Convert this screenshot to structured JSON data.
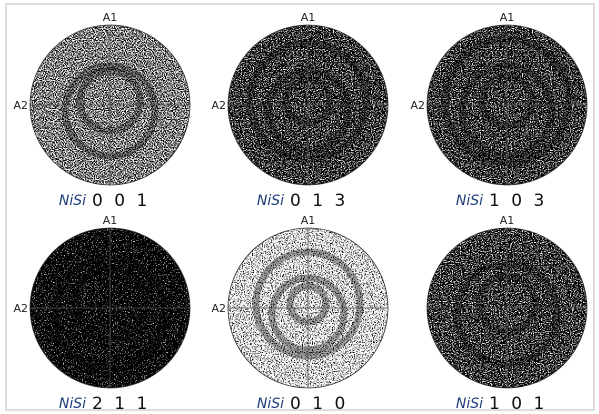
{
  "panels": [
    {
      "a1": "A1",
      "a2": "A2",
      "phase": "NiSi",
      "hkl": "0 0 1"
    },
    {
      "a1": "A1",
      "a2": "A2",
      "phase": "NiSi",
      "hkl": "0 1 3"
    },
    {
      "a1": "A1",
      "a2": "A2",
      "phase": "NiSi",
      "hkl": "1 0 3"
    },
    {
      "a1": "A1",
      "a2": "A2",
      "phase": "NiSi",
      "hkl": "2 1 1"
    },
    {
      "a1": "A1",
      "a2": "A2",
      "phase": "NiSi",
      "hkl": "0 1 0"
    },
    {
      "a1": "A1",
      "phase": "NiSi",
      "hkl": "1 0 1"
    }
  ]
}
